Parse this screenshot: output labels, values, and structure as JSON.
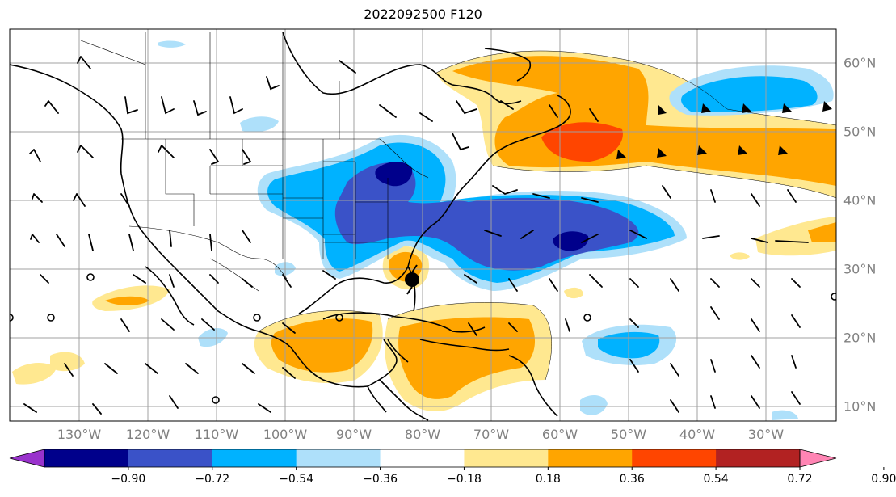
{
  "title": "2022092500 F120",
  "lon_labels": [
    "130°W",
    "120°W",
    "110°W",
    "100°W",
    "90°W",
    "80°W",
    "70°W",
    "60°W",
    "50°W",
    "40°W",
    "30°W"
  ],
  "lat_labels": [
    "60°N",
    "50°N",
    "40°N",
    "30°N",
    "20°N",
    "10°N"
  ],
  "colorbar": {
    "ticks": [
      "−0.90",
      "−0.72",
      "−0.54",
      "−0.36",
      "−0.18",
      "0.18",
      "0.36",
      "0.54",
      "0.72",
      "0.90"
    ],
    "colors": [
      "#9932cc",
      "#00008b",
      "#3a52c8",
      "#00b2ff",
      "#aee0fa",
      "#ffffff",
      "#ffe890",
      "#ffa500",
      "#ff4500",
      "#b22222",
      "#ff85b4"
    ]
  },
  "colors": {
    "pos_1": "#ffe890",
    "pos_2": "#ffa500",
    "pos_3": "#ff4500",
    "neg_1": "#aee0fa",
    "neg_2": "#00b2ff",
    "neg_3": "#3a52c8",
    "neg_4": "#00008b",
    "grid": "#a0a0a0",
    "coast": "#000000"
  },
  "icons": [
    "tropical-storm-symbol-icon"
  ]
}
